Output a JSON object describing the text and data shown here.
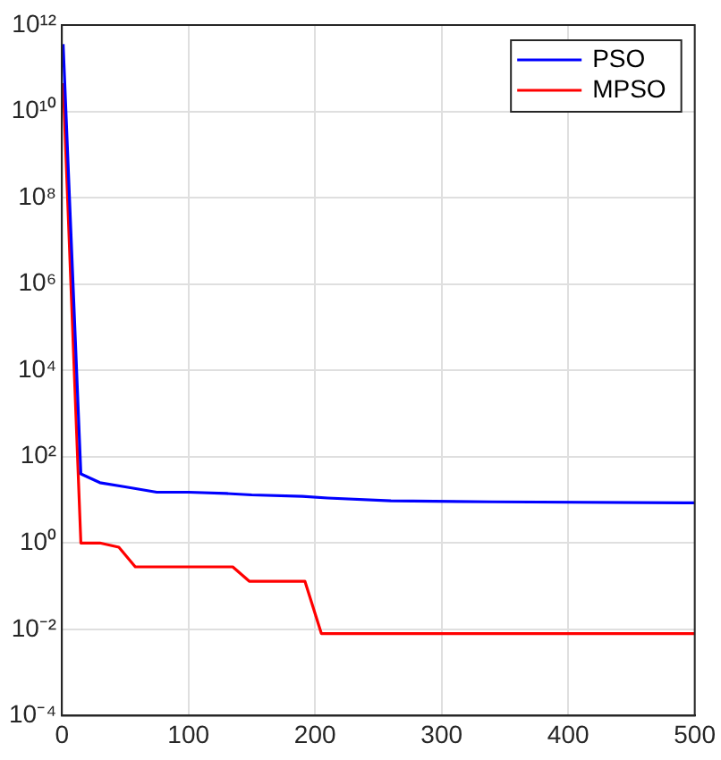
{
  "chart_data": {
    "type": "line",
    "log": "y",
    "grid": true,
    "legend": "top right",
    "line_style": "solid",
    "marker": "none",
    "xlim": [
      0,
      500
    ],
    "xticks": [
      0,
      100,
      200,
      300,
      400,
      500
    ],
    "ylim": [
      0.0001,
      1000000000000
    ],
    "yticks": [
      {
        "value": 0.0001,
        "label": "10⁻⁴"
      },
      {
        "value": 0.01,
        "label": "10⁻²"
      },
      {
        "value": 1,
        "label": "10⁰"
      },
      {
        "value": 100,
        "label": "10²"
      },
      {
        "value": 10000,
        "label": "10⁴"
      },
      {
        "value": 1000000,
        "label": "10⁶"
      },
      {
        "value": 100000000,
        "label": "10⁸"
      },
      {
        "value": 10000000000,
        "label": "10¹⁰"
      },
      {
        "value": 1000000000000,
        "label": "10¹²"
      }
    ],
    "series": [
      {
        "name": "PSO",
        "color": "#0000ff",
        "x": [
          1,
          15,
          30,
          50,
          75,
          100,
          130,
          150,
          190,
          210,
          260,
          340,
          500
        ],
        "values": [
          360000000000,
          40,
          25,
          20,
          15,
          15,
          14,
          13,
          12,
          11,
          9.5,
          9,
          8.5
        ]
      },
      {
        "name": "MPSO",
        "color": "#ff0000",
        "x": [
          1,
          15,
          30,
          45,
          58,
          135,
          148,
          192,
          205,
          500
        ],
        "values": [
          45000000000,
          1,
          1,
          0.8,
          0.28,
          0.28,
          0.13,
          0.13,
          0.008,
          0.008
        ]
      }
    ]
  }
}
